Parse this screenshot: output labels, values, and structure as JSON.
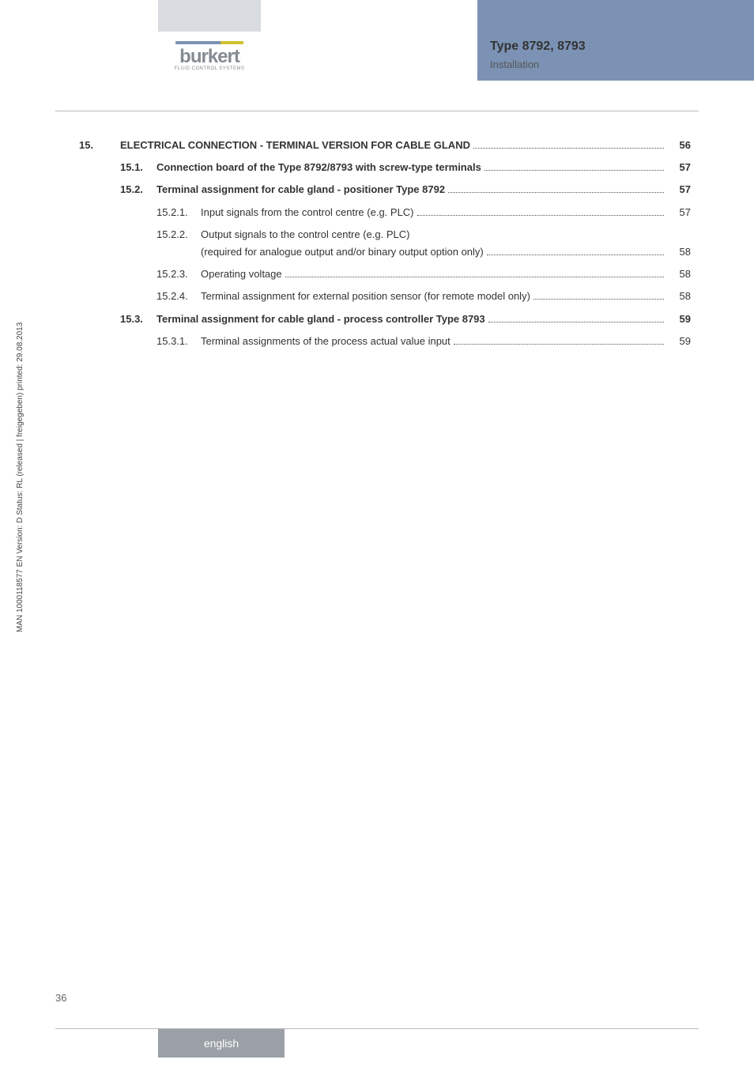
{
  "header": {
    "title": "Type 8792, 8793",
    "subtitle": "Installation"
  },
  "logo": {
    "name": "burkert",
    "tagline": "FLUID CONTROL SYSTEMS"
  },
  "toc": [
    {
      "level": "chapter",
      "num": "15.",
      "label": "ELECTRICAL CONNECTION - TERMINAL VERSION FOR CABLE GLAND",
      "page": "56"
    },
    {
      "level": "section",
      "num": "15.1.",
      "label": "Connection board of the Type 8792/8793 with screw-type terminals",
      "page": "57"
    },
    {
      "level": "section",
      "num": "15.2.",
      "label": "Terminal assignment for cable gland - positioner Type 8792",
      "page": "57"
    },
    {
      "level": "subsec",
      "num": "15.2.1.",
      "label": "Input signals from the control centre (e.g. PLC)",
      "page": "57"
    },
    {
      "level": "subsec",
      "num": "15.2.2.",
      "label": "Output signals to the control centre (e.g. PLC)",
      "page": "",
      "cont_label": "(required for analogue output and/or binary output option only)",
      "cont_page": "58"
    },
    {
      "level": "subsec",
      "num": "15.2.3.",
      "label": "Operating voltage",
      "page": "58"
    },
    {
      "level": "subsec",
      "num": "15.2.4.",
      "label": "Terminal assignment for external position sensor (for remote model only)",
      "page": "58"
    },
    {
      "level": "section",
      "num": "15.3.",
      "label": "Terminal assignment for cable gland - process controller Type 8793",
      "page": "59"
    },
    {
      "level": "subsec",
      "num": "15.3.1.",
      "label": "Terminal assignments of the process actual value input",
      "page": "59"
    }
  ],
  "side_text": "MAN 1000118577 EN Version: D Status: RL (released | freigegeben) printed: 29.08.2013",
  "page_number": "36",
  "footer_lang": "english",
  "colors": {
    "blue_header": "#7b92b4",
    "grey_header": "#d8dce0",
    "footer_grey": "#9aa0a6",
    "line_grey": "#bbbbbb",
    "body_text": "#333333"
  }
}
